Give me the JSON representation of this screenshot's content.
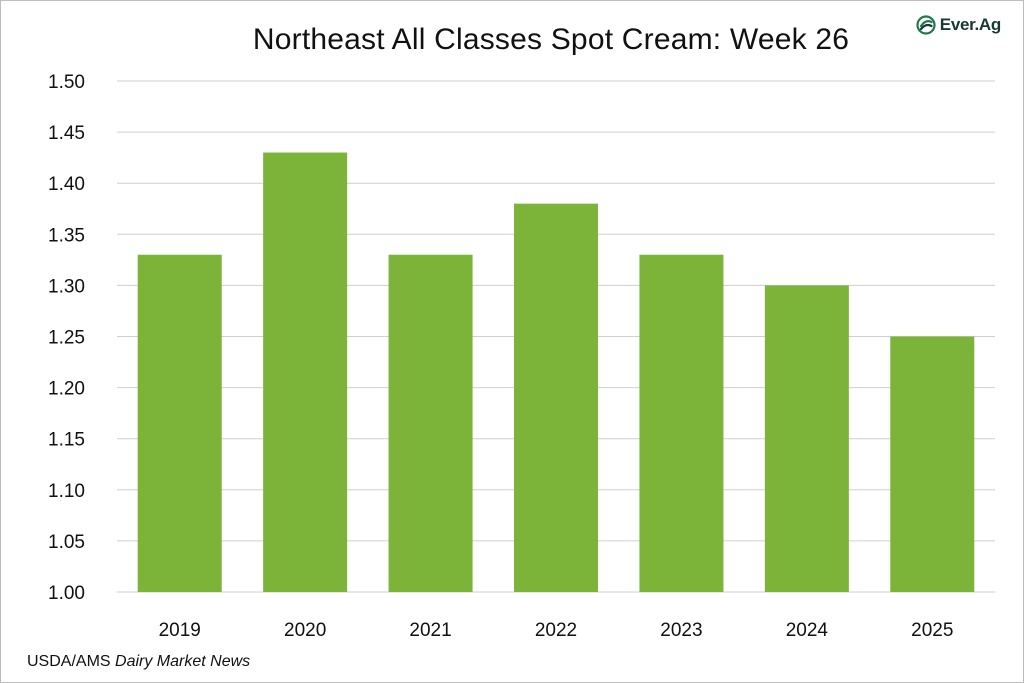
{
  "chart_data": {
    "type": "bar",
    "title": "Northeast All Classes Spot Cream: Week 26",
    "categories": [
      "2019",
      "2020",
      "2021",
      "2022",
      "2023",
      "2024",
      "2025"
    ],
    "values": [
      1.33,
      1.43,
      1.33,
      1.38,
      1.33,
      1.3,
      1.25
    ],
    "ylim": [
      1.0,
      1.5
    ],
    "yticks": [
      "1.00",
      "1.05",
      "1.10",
      "1.15",
      "1.20",
      "1.25",
      "1.30",
      "1.35",
      "1.40",
      "1.45",
      "1.50"
    ],
    "xlabel": "",
    "ylabel": "",
    "grid": true,
    "bar_color": "#7cb43a",
    "grid_color": "#d0d0d0"
  },
  "logo": {
    "text": "Ever.Ag",
    "icon": "ever-ag-logo-icon",
    "color": "#1e7a4a"
  },
  "source": {
    "prefix": "USDA/AMS ",
    "publication": "Dairy Market News"
  }
}
